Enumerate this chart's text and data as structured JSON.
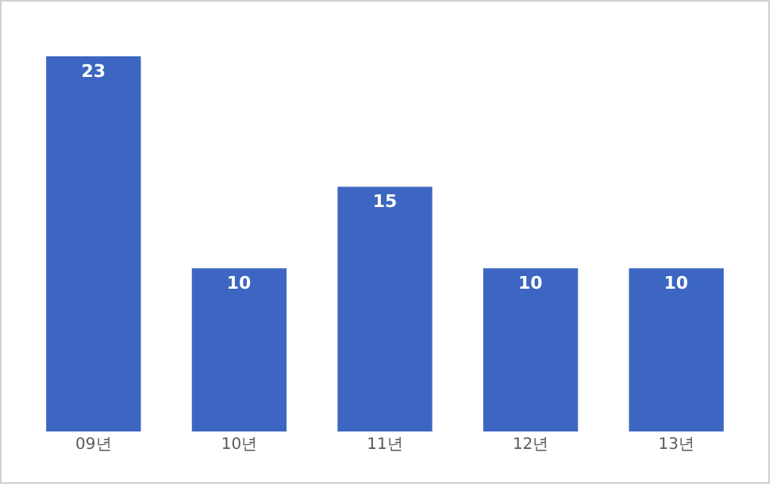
{
  "chart_data": {
    "type": "bar",
    "categories": [
      "09년",
      "10년",
      "11년",
      "12년",
      "13년"
    ],
    "values": [
      23,
      10,
      15,
      10,
      10
    ],
    "color": "#3d66c2",
    "data_labels": true,
    "grid": false,
    "legend": false
  }
}
